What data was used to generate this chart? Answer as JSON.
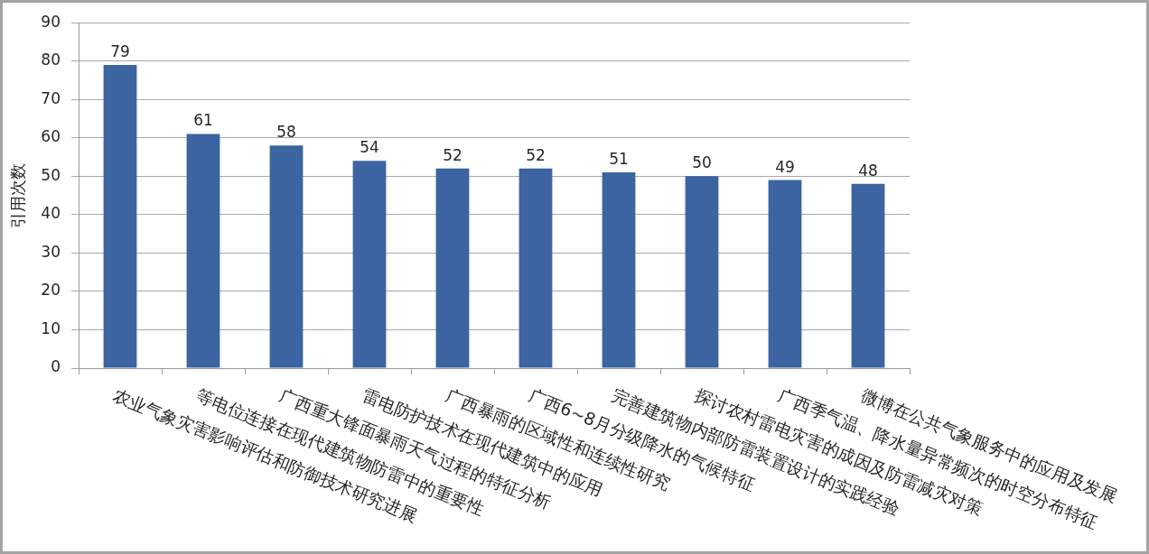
{
  "chart_data": {
    "type": "bar",
    "ylabel": "引用次数",
    "categories": [
      "农业气象灾害影响评估和防御技术研究进展",
      "等电位连接在现代建筑物防雷中的重要性",
      "广西重大锋面暴雨天气过程的特征分析",
      "雷电防护技术在现代建筑中的应用",
      "广西暴雨的区域性和连续性研究",
      "广西6~8月分级降水的气候特征",
      "完善建筑物内部防雷装置设计的实践经验",
      "探讨农村雷电灾害的成因及防雷减灾对策",
      "广西季气温、降水量异常频次的时空分布特征",
      "微博在公共气象服务中的应用及发展"
    ],
    "values": [
      79,
      61,
      58,
      54,
      52,
      52,
      51,
      50,
      49,
      48
    ],
    "color": "#3b64a0",
    "ylim": [
      0,
      90
    ],
    "yticks": [
      0,
      10,
      20,
      30,
      40,
      50,
      60,
      70,
      80,
      90
    ],
    "grid": "y",
    "data_labels": true
  }
}
